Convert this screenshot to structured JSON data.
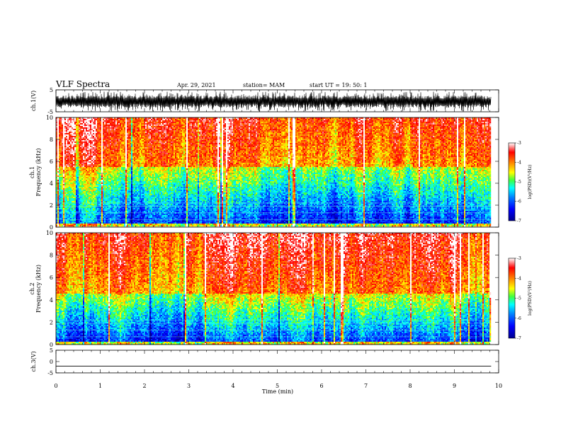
{
  "header": {
    "title": "VLF Spectra",
    "date": "Apr. 29, 2021",
    "station": "station= MAM",
    "start": "start  UT =   19: 50: 1"
  },
  "chart_data": [
    {
      "type": "line",
      "id": "ch1-waveform",
      "ylabel": "ch.1(V)",
      "ylim": [
        -5,
        5
      ],
      "y_ticks": [
        "5",
        "-5"
      ],
      "xlim": [
        0,
        10
      ],
      "x_end_min": 9.83,
      "signal": "dense noisy waveform, roughly -4 to +4 V"
    },
    {
      "type": "heatmap",
      "id": "ch1-spectrogram",
      "ylabel": "ch.1\nFrequency (kHz)",
      "ylim": [
        0,
        10
      ],
      "y_ticks": [
        "0",
        "2",
        "4",
        "6",
        "8",
        "10"
      ],
      "xlim": [
        0,
        10
      ],
      "x_end_min": 9.83,
      "colorbar": {
        "label": "log(PSD)(V²/Hz)",
        "range": [
          -7,
          -3
        ],
        "ticks": [
          "-3",
          "-4",
          "-5",
          "-6",
          "-7"
        ]
      },
      "noise_boundary_khz": 5.5
    },
    {
      "type": "heatmap",
      "id": "ch2-spectrogram",
      "ylabel": "ch.2\nFrequency (kHz)",
      "ylim": [
        0,
        10
      ],
      "y_ticks": [
        "0",
        "2",
        "4",
        "6",
        "8",
        "10"
      ],
      "xlim": [
        0,
        10
      ],
      "x_end_min": 9.83,
      "colorbar": {
        "label": "log(PSD)(V²/Hz)",
        "range": [
          -7,
          -3
        ],
        "ticks": [
          "-3",
          "-4",
          "-5",
          "-6",
          "-7"
        ]
      },
      "noise_boundary_khz": 4.5
    },
    {
      "type": "line",
      "id": "ch3-waveform",
      "ylabel": "ch.3(V)",
      "ylim": [
        -5,
        5
      ],
      "y_ticks": [
        "5",
        "0",
        "-5"
      ],
      "xlim": [
        0,
        10
      ],
      "x_end_min": 9.83,
      "constant_value": -2
    }
  ],
  "x_axis": {
    "label": "Time  (min)",
    "ticks": [
      "0",
      "1",
      "2",
      "3",
      "4",
      "5",
      "6",
      "7",
      "8",
      "9",
      "10"
    ]
  },
  "colors": {
    "jet": [
      "#00008f",
      "#0000ff",
      "#0080ff",
      "#00ffff",
      "#80ff80",
      "#ffff00",
      "#ff8000",
      "#ff0000",
      "#ffffff"
    ]
  }
}
